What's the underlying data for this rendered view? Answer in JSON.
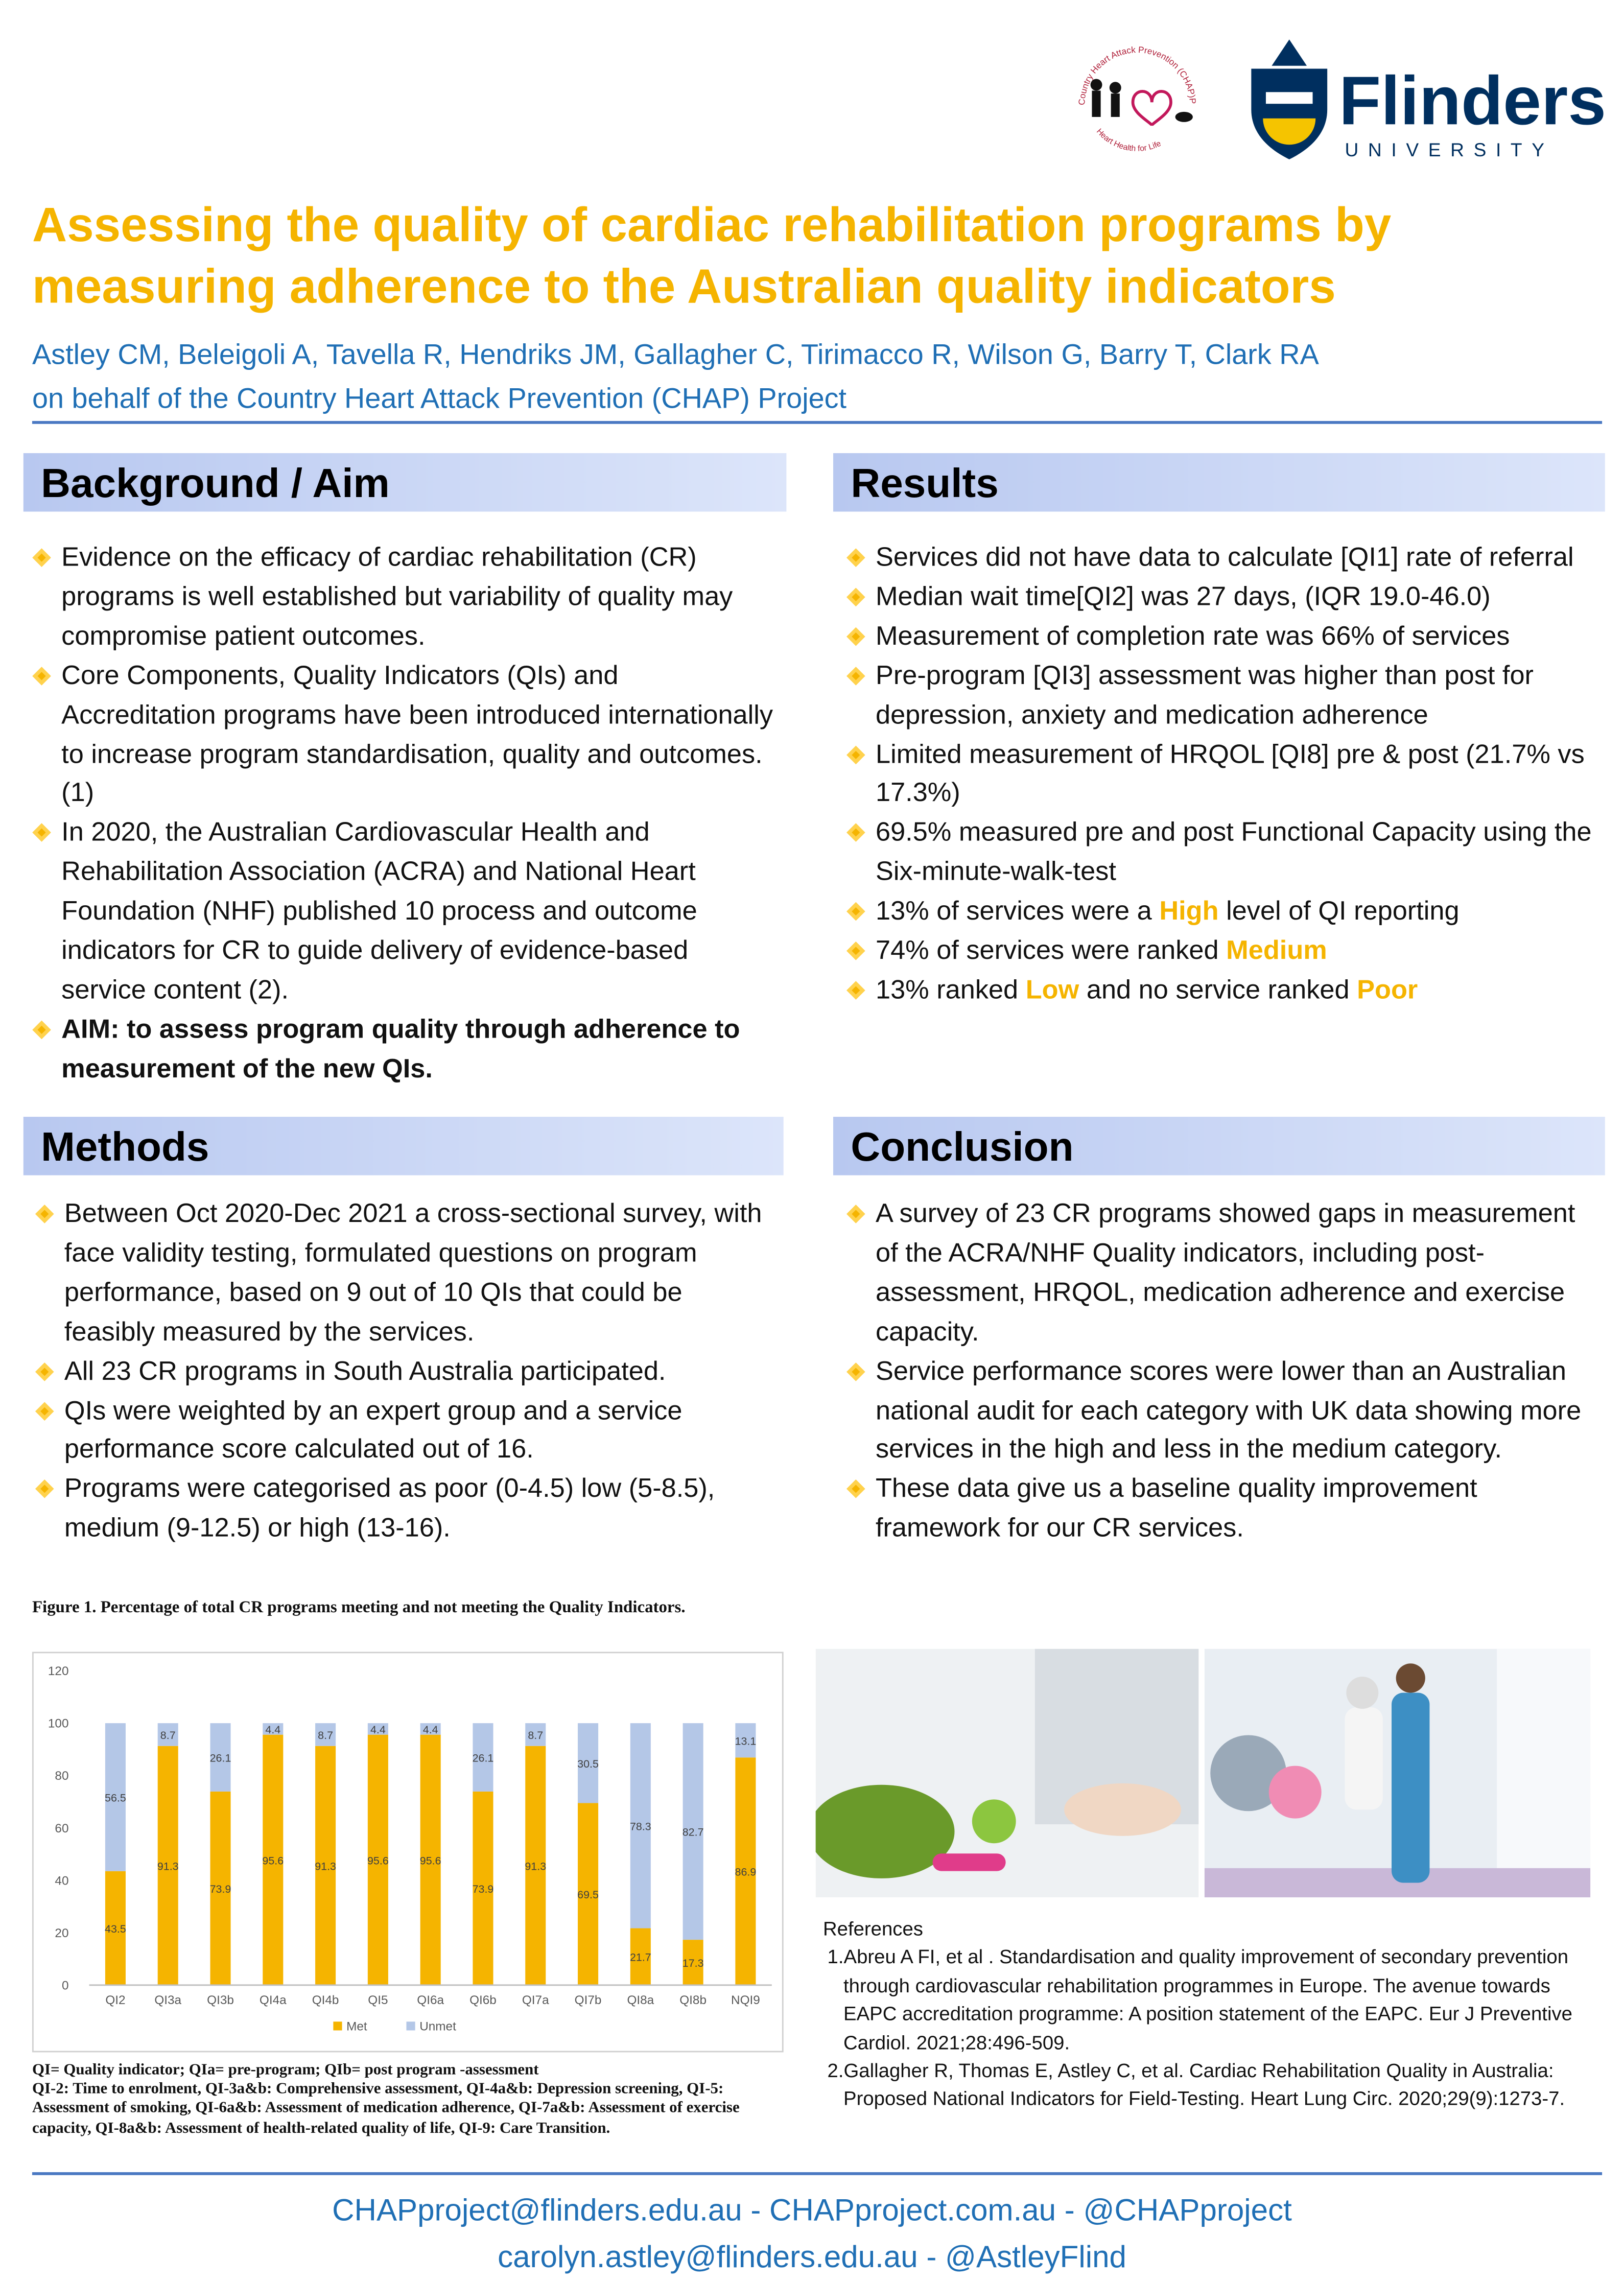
{
  "header": {
    "logo_ring_top": "Country Heart Attack Prevention (CHAP)Project",
    "logo_ring_bottom": "Heart Health for Life",
    "university_name": "Flinders",
    "university_word": "UNIVERSITY",
    "title_lines": [
      "Assessing the quality of cardiac rehabilitation programs by",
      "measuring adherence to the Australian quality indicators"
    ],
    "author_lines": [
      "Astley CM, Beleigoli A, Tavella R, Hendriks JM, Gallagher C, Tirimacco R, Wilson G, Barry T, Clark RA",
      "on behalf of the Country Heart Attack Prevention (CHAP) Project"
    ]
  },
  "background": {
    "heading": "Background / Aim",
    "items": [
      "Evidence on the efficacy of cardiac rehabilitation (CR) programs is well established but variability of quality may compromise patient outcomes.",
      "Core Components, Quality Indicators (QIs) and Accreditation programs have been introduced internationally to increase program standardisation, quality and outcomes.(1)",
      "In 2020, the Australian Cardiovascular Health and Rehabilitation Association (ACRA) and National Heart Foundation (NHF) published 10 process and outcome indicators for CR to guide delivery of evidence-based service content (2).",
      [
        {
          "bold": "AIM:  to assess program quality through adherence to measurement of the new QIs."
        }
      ]
    ]
  },
  "results": {
    "heading": "Results",
    "items": [
      "Services did not have data to calculate [QI1] rate of referral",
      "Median wait time[QI2] was 27 days, (IQR 19.0-46.0)",
      "Measurement of completion rate was 66% of services",
      "Pre-program [QI3] assessment was higher than post for depression, anxiety and  medication adherence",
      "Limited measurement of HRQOL [QI8] pre & post (21.7% vs 17.3%)",
      "69.5% measured pre and post Functional Capacity using the Six-minute-walk-test",
      [
        "13% of services were a ",
        {
          "highlight": "High"
        },
        " level of QI reporting"
      ],
      [
        "74% of services were ranked ",
        {
          "highlight": "Medium"
        }
      ],
      [
        "13% ranked ",
        {
          "highlight": "Low"
        },
        " and no service ranked ",
        {
          "highlight": "Poor"
        }
      ]
    ]
  },
  "methods": {
    "heading": "Methods",
    "items": [
      "Between Oct 2020-Dec 2021 a cross-sectional survey, with face validity testing, formulated questions on program performance, based on 9 out of 10 QIs that could be feasibly measured by the services.",
      "All 23 CR programs in South Australia participated.",
      "QIs were weighted by an expert group and a service performance score calculated out of 16.",
      "Programs were categorised as poor (0-4.5) low (5-8.5), medium (9-12.5) or high (13-16)."
    ]
  },
  "conclusion": {
    "heading": "Conclusion",
    "items": [
      "A survey of 23 CR programs showed gaps in measurement of the ACRA/NHF Quality indicators, including post-assessment, HRQOL, medication adherence and exercise capacity.",
      "Service performance scores were lower than an Australian national audit for each category with UK data showing more services in the high and less in the medium category.",
      "These data give us a baseline quality improvement framework for our CR services."
    ]
  },
  "chart_data": {
    "type": "bar",
    "stacked": true,
    "title": "Figure 1. Percentage of total CR programs meeting and not meeting the Quality Indicators.",
    "categories": [
      "QI2",
      "QI3a",
      "QI3b",
      "QI4a",
      "QI4b",
      "QI5",
      "QI6a",
      "QI6b",
      "QI7a",
      "QI7b",
      "QI8a",
      "QI8b",
      "NQI9"
    ],
    "series": [
      {
        "name": "Met",
        "color": "#f5b400",
        "values": [
          43.5,
          91.3,
          73.9,
          95.6,
          91.3,
          95.6,
          95.6,
          73.9,
          91.3,
          69.5,
          21.7,
          17.3,
          86.9
        ]
      },
      {
        "name": "Unmet",
        "color": "#b4c7e7",
        "values": [
          56.5,
          8.7,
          26.1,
          4.4,
          8.7,
          4.4,
          4.4,
          26.1,
          8.7,
          30.5,
          78.3,
          82.7,
          13.1
        ]
      }
    ],
    "ylim": [
      0,
      120
    ],
    "yticks": [
      0,
      20,
      40,
      60,
      80,
      100,
      120
    ],
    "grid": false,
    "legend": "bottom"
  },
  "figure_notes": [
    "QI= Quality indicator; QIa= pre-program; QIb= post program -assessment",
    "QI-2: Time to enrolment, QI-3a&b: Comprehensive assessment, QI-4a&b: Depression screening, QI-5: Assessment of smoking, QI-6a&b: Assessment of medication adherence, QI-7a&b: Assessment of exercise capacity, QI-8a&b: Assessment of health-related quality of life, QI-9: Care Transition."
  ],
  "references": {
    "heading": "References",
    "items": [
      "1.Abreu A FI, et al . Standardisation and quality improvement of secondary prevention through cardiovascular rehabilitation programmes in Europe. The avenue towards EAPC accreditation programme: A position statement of the EAPC. Eur J Preventive Cardiol. 2021;28:496-509.",
      "2.Gallagher R, Thomas E, Astley C, et al. Cardiac Rehabilitation Quality in Australia: Proposed National Indicators for Field-Testing. Heart Lung Circ. 2020;29(9):1273-7."
    ]
  },
  "footer": {
    "lines": [
      "CHAPproject@flinders.edu.au - CHAPproject.com.au - @CHAPproject",
      "carolyn.astley@flinders.edu.au - @AstleyFlind"
    ]
  }
}
